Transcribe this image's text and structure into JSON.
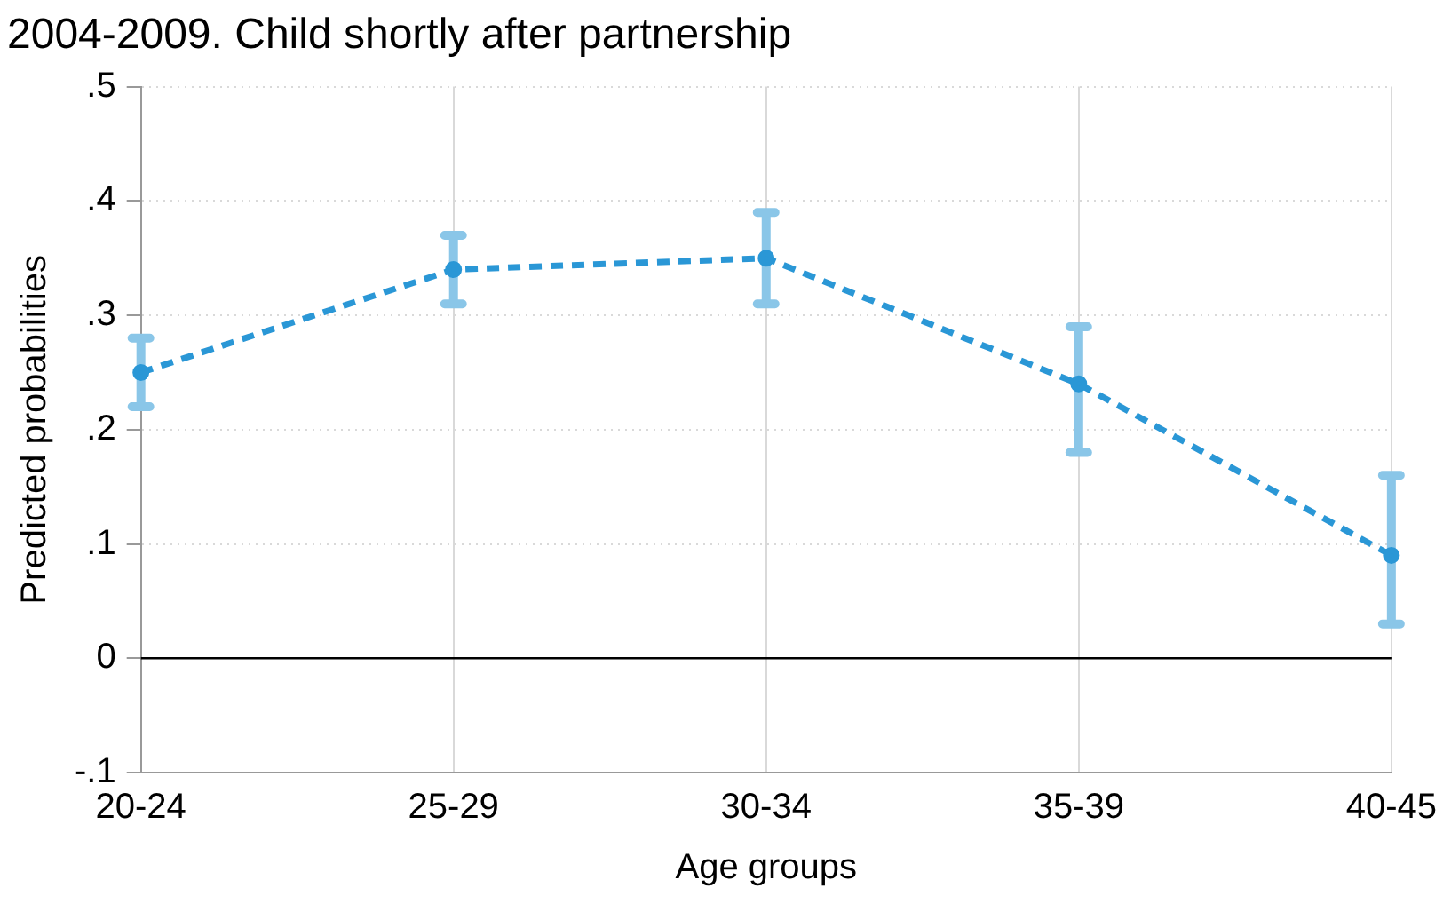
{
  "chart_data": {
    "type": "line",
    "title": "2004-2009. Child shortly after partnership",
    "xlabel": "Age groups",
    "ylabel": "Predicted probabilities",
    "categories": [
      "20-24",
      "25-29",
      "30-34",
      "35-39",
      "40-45"
    ],
    "series": [
      {
        "color": "#2a97d6",
        "values": [
          0.25,
          0.34,
          0.35,
          0.24,
          0.09
        ],
        "errors": [
          [
            0.22,
            0.28
          ],
          [
            0.31,
            0.37
          ],
          [
            0.31,
            0.39
          ],
          [
            0.18,
            0.29
          ],
          [
            0.03,
            0.16
          ]
        ]
      }
    ],
    "ylim": [
      -0.1,
      0.5
    ],
    "yticks": [
      {
        "value": -0.1,
        "label": "-.1"
      },
      0,
      {
        "value": 0.1,
        "label": ".1"
      },
      {
        "value": 0.2,
        "label": ".2"
      },
      {
        "value": 0.3,
        "label": ".3"
      },
      {
        "value": 0.4,
        "label": ".4"
      },
      {
        "value": 0.5,
        "label": ".5"
      }
    ],
    "ref_lines": [
      {
        "axis": "y",
        "value": 0,
        "color": "#000000"
      }
    ],
    "grid": true,
    "legend": false,
    "marker": "circle",
    "line_style": "dashed"
  }
}
